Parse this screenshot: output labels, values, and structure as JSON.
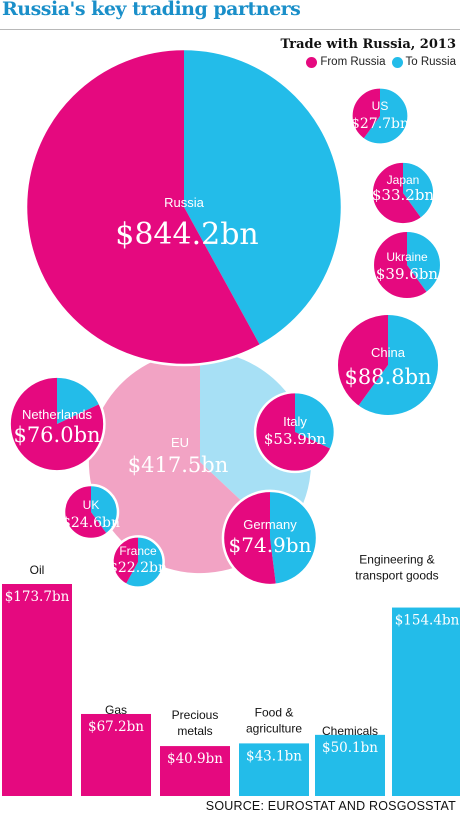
{
  "title": "Russia's key trading partners",
  "subtitle": "Trade with Russia, 2013",
  "legend": [
    {
      "label": "From Russia",
      "color": "#e5097f"
    },
    {
      "label": "To Russia",
      "color": "#23bce9"
    }
  ],
  "source": "SOURCE: EUROSTAT AND ROSGOSSTAT",
  "chart_data": [
    {
      "type": "bubble-pie",
      "colors": {
        "from": "#e5097f",
        "to": "#23bce9",
        "eu_from": "#f2a3c4",
        "eu_to": "#a7e0f5"
      },
      "items": [
        {
          "name": "Russia",
          "value": 844.2,
          "label": "$844.2bn",
          "from_share": 0.58
        },
        {
          "name": "EU",
          "value": 417.5,
          "label": "$417.5bn",
          "from_share": 0.63
        },
        {
          "name": "China",
          "value": 88.8,
          "label": "$88.8bn",
          "from_share": 0.4
        },
        {
          "name": "Netherlands",
          "value": 76.0,
          "label": "$76.0bn",
          "from_share": 0.82
        },
        {
          "name": "Germany",
          "value": 74.9,
          "label": "$74.9bn",
          "from_share": 0.52
        },
        {
          "name": "Italy",
          "value": 53.9,
          "label": "$53.9bn",
          "from_share": 0.68
        },
        {
          "name": "Ukraine",
          "value": 39.6,
          "label": "$39.6bn",
          "from_share": 0.6
        },
        {
          "name": "Japan",
          "value": 33.2,
          "label": "$33.2bn",
          "from_share": 0.6
        },
        {
          "name": "US",
          "value": 27.7,
          "label": "$27.7bn",
          "from_share": 0.4
        },
        {
          "name": "UK",
          "value": 24.6,
          "label": "$24.6bn",
          "from_share": 0.6
        },
        {
          "name": "France",
          "value": 22.2,
          "label": "$22.2bn",
          "from_share": 0.42
        }
      ]
    },
    {
      "type": "bar",
      "categories": [
        "Oil",
        "Gas",
        "Precious metals",
        "Food & agriculture",
        "Chemicals",
        "Engineering & transport goods"
      ],
      "category_lines": [
        [
          "Oil"
        ],
        [
          "Gas"
        ],
        [
          "Precious",
          "metals"
        ],
        [
          "Food &",
          "agriculture"
        ],
        [
          "Chemicals"
        ],
        [
          "Engineering &",
          "transport goods"
        ]
      ],
      "values": [
        173.7,
        67.2,
        40.9,
        43.1,
        50.1,
        154.4
      ],
      "labels": [
        "$173.7bn",
        "$67.2bn",
        "$40.9bn",
        "$43.1bn",
        "$50.1bn",
        "$154.4bn"
      ],
      "direction": [
        "From Russia",
        "From Russia",
        "From Russia",
        "To Russia",
        "To Russia",
        "To Russia"
      ]
    }
  ]
}
